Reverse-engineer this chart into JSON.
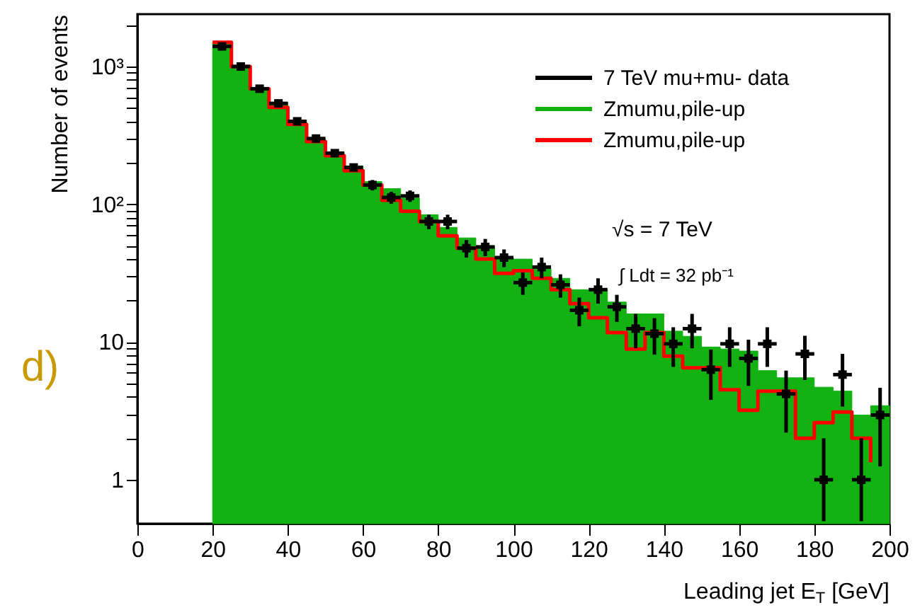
{
  "chart_data": {
    "type": "histogram",
    "xlabel": "Leading jet E$_{T}$ [GeV]",
    "ylabel": "Number of events",
    "bins": [
      20,
      25,
      30,
      35,
      40,
      45,
      50,
      55,
      60,
      65,
      70,
      75,
      80,
      85,
      90,
      95,
      100,
      105,
      110,
      115,
      120,
      125,
      130,
      135,
      140,
      145,
      150,
      155,
      160,
      165,
      170,
      175,
      180,
      185,
      190,
      195,
      200
    ],
    "series": [
      {
        "name": "7 TeV mu+mu- data",
        "type": "scatter",
        "color": "#000000",
        "marker": "square",
        "x": [
          22.5,
          27.5,
          32.5,
          37.5,
          42.5,
          47.5,
          52.5,
          57.5,
          62.5,
          67.5,
          72.5,
          77.5,
          82.5,
          87.5,
          92.5,
          97.5,
          102.5,
          107.5,
          112.5,
          117.5,
          122.5,
          127.5,
          132.5,
          137.5,
          142.5,
          147.5,
          152.5,
          157.5,
          162.5,
          167.5,
          172.5,
          177.5,
          182.5,
          187.5,
          192.5,
          197.5
        ],
        "values": [
          1400,
          1000,
          690,
          540,
          400,
          300,
          235,
          185,
          138,
          112,
          115,
          75,
          75,
          48,
          49,
          41,
          27,
          35,
          26,
          17,
          24,
          18,
          12.5,
          11.5,
          9.7,
          12.5,
          6.3,
          9.7,
          7.6,
          9.7,
          4.2,
          8.2,
          1.0,
          5.8,
          1.0,
          2.95
        ],
        "errors": [
          null,
          null,
          null,
          null,
          null,
          null,
          null,
          null,
          12,
          11,
          11,
          9,
          9,
          7,
          7,
          6,
          5,
          6,
          5,
          4,
          5,
          4,
          3.5,
          3.4,
          3.1,
          3.5,
          2.5,
          3.1,
          2.8,
          3.1,
          2,
          2.9,
          [
            0.5,
            2.0
          ],
          2.4,
          [
            0.5,
            2.0
          ],
          1.7
        ],
        "xerrors": [
          2.5,
          2.5,
          2.5,
          2.5,
          2.5,
          2.5,
          2.5,
          2.5,
          2.5,
          2.5,
          2.5,
          2.5,
          2.5,
          2.5,
          2.5,
          2.5,
          2.5,
          2.5,
          2.5,
          2.5,
          2.5,
          2.5,
          2.5,
          2.5,
          2.5,
          2.5,
          2.5,
          2.5,
          2.5,
          2.5,
          2.5,
          2.5,
          2.5,
          2.5,
          2.5,
          2.5
        ]
      },
      {
        "name": "Zmumu,pile-up",
        "color": "#13b213",
        "values": [
          1500,
          1000,
          690,
          550,
          405,
          300,
          240,
          190,
          146,
          130,
          111,
          84,
          68,
          57,
          50,
          41,
          40,
          34,
          29,
          24,
          24,
          19.5,
          16,
          16,
          12,
          11,
          9.2,
          8.9,
          8.6,
          6.2,
          5.5,
          5.5,
          4.7,
          4.4,
          2.95,
          3.45
        ]
      },
      {
        "name": "Zmumu,pile-up",
        "type": "step",
        "color": "#ff0000",
        "x": [
          20,
          25,
          30,
          35,
          40,
          45,
          50,
          55,
          60,
          65,
          70,
          75,
          80,
          85,
          90,
          95,
          100,
          105,
          110,
          115,
          120,
          125,
          130,
          135,
          140,
          145,
          150,
          155,
          160,
          165,
          170,
          175,
          180,
          185,
          190,
          195
        ],
        "values": [
          1500,
          1000,
          690,
          505,
          380,
          285,
          225,
          175,
          138,
          107,
          89,
          75,
          59,
          48,
          40,
          31.5,
          33,
          29,
          24,
          19,
          15,
          11.7,
          8.9,
          11.7,
          7.9,
          6.5,
          6.5,
          4.5,
          3.2,
          4.4,
          4.4,
          2.0,
          2.6,
          3.1,
          2.0,
          1.34
        ]
      }
    ],
    "xlim": [
      0,
      200
    ],
    "xticks": [
      0,
      20,
      40,
      60,
      80,
      100,
      120,
      140,
      160,
      180,
      200
    ],
    "ylim": [
      0.48,
      2400
    ],
    "log": true,
    "yticks": [
      {
        "value": 1,
        "label": "1"
      },
      {
        "value": 2,
        "label": null
      },
      {
        "value": 3,
        "label": null
      },
      {
        "value": 4,
        "label": null
      },
      {
        "value": 5,
        "label": null
      },
      {
        "value": 6,
        "label": null
      },
      {
        "value": 7,
        "label": null
      },
      {
        "value": 8,
        "label": null
      },
      {
        "value": 9,
        "label": null
      },
      {
        "value": 10,
        "label": "10"
      },
      {
        "value": 20,
        "label": null
      },
      {
        "value": 30,
        "label": null
      },
      {
        "value": 40,
        "label": null
      },
      {
        "value": 50,
        "label": null
      },
      {
        "value": 60,
        "label": null
      },
      {
        "value": 70,
        "label": null
      },
      {
        "value": 80,
        "label": null
      },
      {
        "value": 90,
        "label": null
      },
      {
        "value": 100,
        "label": "10²"
      },
      {
        "value": 200,
        "label": null
      },
      {
        "value": 300,
        "label": null
      },
      {
        "value": 400,
        "label": null
      },
      {
        "value": 500,
        "label": null
      },
      {
        "value": 600,
        "label": null
      },
      {
        "value": 700,
        "label": null
      },
      {
        "value": 800,
        "label": null
      },
      {
        "value": 900,
        "label": null
      },
      {
        "value": 1000,
        "label": "10³"
      },
      {
        "value": 2000,
        "label": null
      }
    ],
    "grid": false,
    "legend": "top right",
    "annotations": [
      "√s = 7 TeV",
      "∫ Ldt = 32 pb⁻¹",
      "d)"
    ]
  }
}
